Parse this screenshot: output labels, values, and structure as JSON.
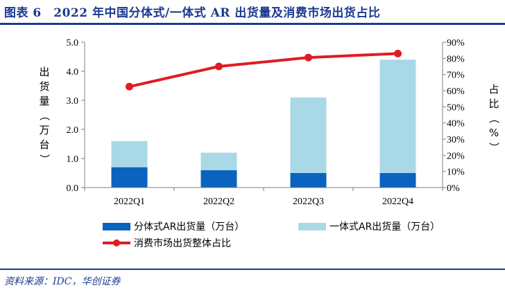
{
  "title": "图表 6　2022 年中国分体式/一体式 AR 出货量及消费市场出货占比",
  "source": "资料来源：IDC，华创证券",
  "colors": {
    "split_bar": "#0b63c0",
    "integrated_bar": "#a9d9e6",
    "line": "#e01b24",
    "title": "#1a3a8f"
  },
  "chart_data": {
    "type": "bar",
    "stacked": true,
    "categories": [
      "2022Q1",
      "2022Q2",
      "2022Q3",
      "2022Q4"
    ],
    "series": [
      {
        "name": "分体式AR出货量（万台）",
        "type": "bar",
        "axis": "left",
        "values": [
          0.7,
          0.6,
          0.5,
          0.5
        ]
      },
      {
        "name": "一体式AR出货量（万台）",
        "type": "bar",
        "axis": "left",
        "values": [
          0.9,
          0.6,
          2.6,
          3.9
        ]
      },
      {
        "name": "消费市场出货整体占比",
        "type": "line",
        "axis": "right",
        "values": [
          62.5,
          75,
          80.5,
          83
        ]
      }
    ],
    "ylabel": "出货量（万台）",
    "y2label": "占比（%）",
    "ylim": [
      0,
      5
    ],
    "y_ticks": [
      "0.0",
      "1.0",
      "2.0",
      "3.0",
      "4.0",
      "5.0"
    ],
    "y2lim": [
      0,
      90
    ],
    "y2_ticks": [
      "0%",
      "10%",
      "20%",
      "30%",
      "40%",
      "50%",
      "60%",
      "70%",
      "80%",
      "90%"
    ],
    "legend_position": "bottom",
    "grid": false
  }
}
